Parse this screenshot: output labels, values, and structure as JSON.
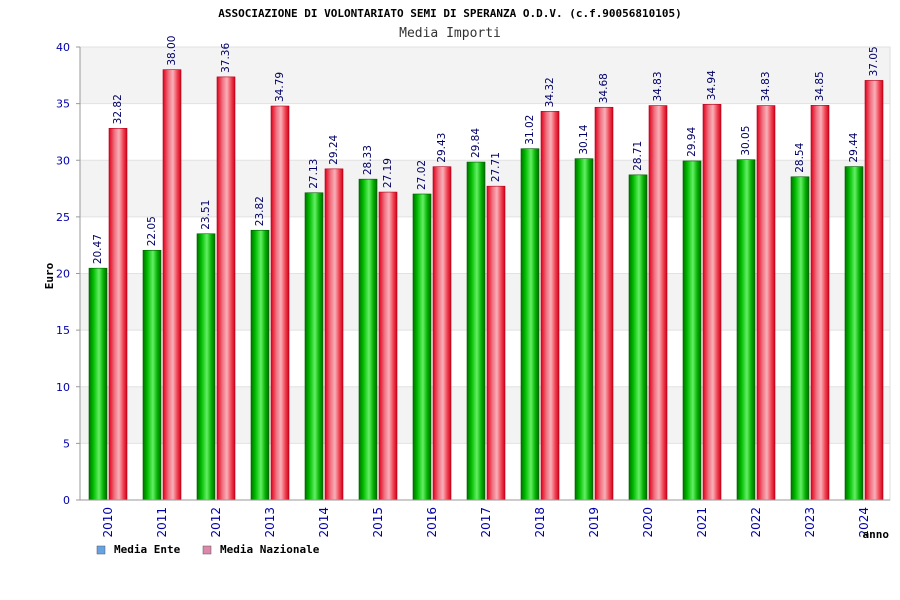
{
  "chart_data": {
    "type": "bar",
    "title": "ASSOCIAZIONE DI VOLONTARIATO SEMI DI SPERANZA O.D.V. (c.f.90056810105)",
    "subtitle": "Media Importi",
    "xlabel": "anno",
    "ylabel": "Euro",
    "ylim": [
      0,
      40
    ],
    "yticks": [
      "0",
      "5",
      "10",
      "15",
      "20",
      "25",
      "30",
      "35",
      "40"
    ],
    "categories": [
      "2010",
      "2011",
      "2012",
      "2013",
      "2014",
      "2015",
      "2016",
      "2017",
      "2018",
      "2019",
      "2020",
      "2021",
      "2022",
      "2023",
      "2024"
    ],
    "series": [
      {
        "name": "Media Ente",
        "values": [
          20.47,
          22.05,
          23.51,
          23.82,
          27.13,
          28.33,
          27.02,
          29.84,
          31.02,
          30.14,
          28.71,
          29.94,
          30.05,
          28.54,
          29.44
        ],
        "labels": [
          "20.47",
          "22.05",
          "23.51",
          "23.82",
          "27.13",
          "28.33",
          "27.02",
          "29.84",
          "31.02",
          "30.14",
          "28.71",
          "29.94",
          "30.05",
          "28.54",
          "29.44"
        ],
        "color": "#00b400",
        "legend_color": "#66a3e6"
      },
      {
        "name": "Media Nazionale",
        "values": [
          32.82,
          38.0,
          37.36,
          34.79,
          29.24,
          27.19,
          29.43,
          27.71,
          34.32,
          34.68,
          34.83,
          34.94,
          34.83,
          34.85,
          37.05
        ],
        "labels": [
          "32.82",
          "38.00",
          "37.36",
          "34.79",
          "29.24",
          "27.19",
          "29.43",
          "27.71",
          "34.32",
          "34.68",
          "34.83",
          "34.94",
          "34.83",
          "34.85",
          "37.05"
        ],
        "color": "#ee1c2e",
        "legend_color": "#dd88aa"
      }
    ],
    "grid": true,
    "legend_position": "bottom-left"
  }
}
